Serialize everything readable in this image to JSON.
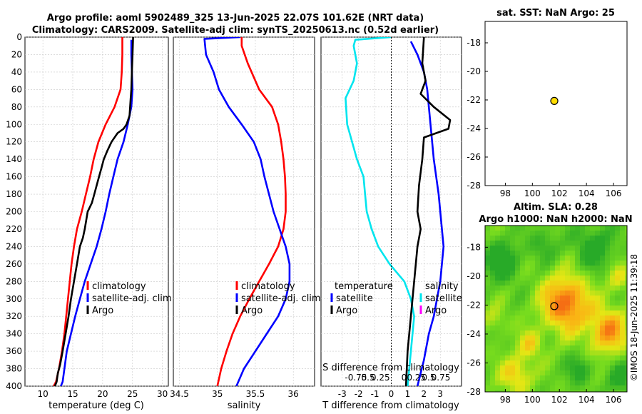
{
  "title_line1": "Argo profile: aoml 5902489_325 13-Jun-2025 22.07S 101.62E (NRT data)",
  "title_line2": "Climatology: CARS2009. Satellite-adj clim: synTS_20250613.nc (0.52d earlier)",
  "watermark": "©IMOS 18-Jun-2025 11:39:18",
  "colors": {
    "climatology": "#ff0000",
    "satellite": "#0000ff",
    "argo": "#000000",
    "s_satellite": "#00e5ee",
    "s_argo": "#ff00ff",
    "grid": "#c8c8c8"
  },
  "depth_ticks": [
    "0",
    "20",
    "40",
    "60",
    "80",
    "100",
    "120",
    "140",
    "160",
    "180",
    "200",
    "220",
    "240",
    "260",
    "280",
    "300",
    "320",
    "340",
    "360",
    "380",
    "400"
  ],
  "chart_data": [
    {
      "id": "temperature",
      "type": "line",
      "xlabel": "temperature (deg C)",
      "xlim": [
        7,
        31
      ],
      "ylim": [
        400,
        0
      ],
      "xticks": [
        "10",
        "15",
        "20",
        "25",
        "30"
      ],
      "legend": [
        "climatology",
        "satellite-adj. clim",
        "Argo"
      ],
      "series": [
        {
          "name": "climatology",
          "color": "#ff0000",
          "x": [
            23.3,
            23.3,
            23.2,
            23.0,
            22.0,
            20.5,
            19.3,
            18.5,
            17.9,
            17.2,
            16.5,
            15.7,
            15.2,
            14.8,
            14.5,
            14.2,
            13.9,
            13.6,
            13.2,
            12.7,
            12.2,
            11.8
          ],
          "y": [
            0,
            20,
            40,
            60,
            80,
            100,
            120,
            140,
            160,
            180,
            200,
            220,
            240,
            260,
            280,
            300,
            320,
            340,
            360,
            380,
            395,
            400
          ]
        },
        {
          "name": "satellite-adj. clim",
          "color": "#0000ff",
          "x": [
            24.8,
            24.8,
            24.9,
            25.0,
            24.8,
            24.2,
            23.5,
            22.5,
            21.8,
            21.1,
            20.5,
            19.8,
            19.0,
            18.0,
            17.0,
            16.2,
            15.4,
            14.7,
            14.0,
            13.6,
            13.3,
            13.0
          ],
          "y": [
            3,
            20,
            40,
            60,
            80,
            100,
            120,
            140,
            160,
            180,
            200,
            220,
            240,
            260,
            280,
            300,
            320,
            340,
            360,
            380,
            395,
            400
          ]
        },
        {
          "name": "Argo",
          "color": "#000000",
          "x": [
            25.1,
            25.0,
            24.9,
            24.8,
            24.7,
            24.6,
            24.5,
            24.0,
            23.5,
            22.5,
            21.5,
            20.8,
            20.2,
            19.8,
            19.4,
            19.0,
            18.6,
            18.2,
            17.5,
            17.0,
            16.7,
            16.2,
            15.7,
            15.2,
            14.7,
            14.3,
            13.8,
            13.3,
            12.9,
            12.5,
            12.3,
            12.0
          ],
          "y": [
            0,
            20,
            40,
            60,
            70,
            80,
            90,
            100,
            105,
            110,
            120,
            130,
            140,
            150,
            160,
            170,
            180,
            190,
            200,
            220,
            230,
            240,
            260,
            280,
            300,
            320,
            340,
            360,
            375,
            385,
            395,
            400
          ]
        }
      ]
    },
    {
      "id": "salinity",
      "type": "line",
      "xlabel": "salinity",
      "xlim": [
        34.42,
        36.28
      ],
      "ylim": [
        400,
        0
      ],
      "xticks": [
        "34.5",
        "35",
        "35.5",
        "36"
      ],
      "legend": [
        "climatology",
        "satellite-adj. clim",
        "Argo"
      ],
      "series": [
        {
          "name": "climatology",
          "color": "#ff0000",
          "x": [
            35.32,
            35.32,
            35.4,
            35.55,
            35.72,
            35.8,
            35.84,
            35.87,
            35.89,
            35.9,
            35.9,
            35.87,
            35.8,
            35.68,
            35.55,
            35.42,
            35.3,
            35.2,
            35.12,
            35.05,
            35.0
          ],
          "y": [
            0,
            10,
            30,
            60,
            80,
            100,
            120,
            140,
            160,
            180,
            200,
            220,
            240,
            260,
            280,
            300,
            320,
            340,
            360,
            380,
            400
          ]
        },
        {
          "name": "satellite-adj. clim",
          "color": "#0000ff",
          "x": [
            35.3,
            34.83,
            34.85,
            34.95,
            35.02,
            35.15,
            35.32,
            35.48,
            35.57,
            35.62,
            35.68,
            35.74,
            35.82,
            35.9,
            35.95,
            35.95,
            35.9,
            35.8,
            35.65,
            35.5,
            35.35,
            35.25
          ],
          "y": [
            0,
            2,
            20,
            40,
            60,
            80,
            100,
            120,
            140,
            160,
            180,
            200,
            220,
            240,
            260,
            280,
            300,
            320,
            340,
            360,
            380,
            400
          ]
        }
      ]
    },
    {
      "id": "difference",
      "type": "line",
      "xlabel": "T difference from climatology",
      "xlabel_top": "S difference from climatology",
      "xlim": [
        -4.3,
        4.3
      ],
      "ylim": [
        400,
        0
      ],
      "xticks": [
        "-3",
        "-2",
        "-1",
        "0",
        "1",
        "2",
        "3"
      ],
      "top_ticks": [
        "-0.75",
        "0.5",
        "0.25",
        "0",
        "0.25",
        "0.5",
        "0.75"
      ],
      "legend_temperature_title": "temperature",
      "legend_salinity_title": "salinity",
      "legend_temperature": [
        "satellite",
        "Argo"
      ],
      "legend_salinity": [
        "satellite",
        "Argo"
      ],
      "series": [
        {
          "name": "S satellite",
          "color": "#00e5ee",
          "x": [
            0.0,
            -2.2,
            -2.3,
            -2.1,
            -2.3,
            -2.8,
            -2.7,
            -2.1,
            -1.7,
            -1.6,
            -1.5,
            -1.2,
            -0.8,
            -0.1,
            0.8,
            1.2,
            1.4,
            1.3,
            1.2,
            1.1,
            1.0
          ],
          "y": [
            0,
            3,
            10,
            30,
            50,
            70,
            100,
            140,
            160,
            180,
            200,
            220,
            240,
            260,
            280,
            300,
            320,
            340,
            360,
            380,
            400
          ]
        },
        {
          "name": "T satellite",
          "color": "#0000ff",
          "x": [
            1.2,
            1.6,
            2.0,
            2.2,
            2.3,
            2.4,
            2.6,
            2.9,
            3.0,
            3.1,
            3.2,
            3.1,
            3.0,
            2.8,
            2.6,
            2.3,
            2.0,
            1.6
          ],
          "y": [
            5,
            20,
            40,
            60,
            80,
            100,
            140,
            180,
            200,
            220,
            240,
            260,
            280,
            300,
            320,
            340,
            370,
            400
          ]
        },
        {
          "name": "T Argo",
          "color": "#000000",
          "x": [
            2.0,
            1.9,
            2.1,
            1.8,
            2.6,
            3.6,
            3.5,
            2.0,
            1.9,
            1.7,
            1.6,
            1.8,
            1.6,
            1.5,
            1.4,
            1.3,
            1.2,
            1.1,
            1.0,
            0.9
          ],
          "y": [
            0,
            30,
            50,
            65,
            80,
            95,
            105,
            115,
            140,
            170,
            200,
            220,
            240,
            260,
            280,
            300,
            320,
            340,
            360,
            400
          ]
        }
      ]
    },
    {
      "id": "sst_map",
      "type": "scatter",
      "title": "sat. SST: NaN Argo: 25",
      "xlim": [
        96.5,
        107
      ],
      "ylim": [
        -28,
        -16.5
      ],
      "xticks": [
        "98",
        "100",
        "102",
        "104",
        "106"
      ],
      "yticks": [
        "-18",
        "-20",
        "-22",
        "-24",
        "-26",
        "-28"
      ],
      "points": [
        {
          "x": 101.62,
          "y": -22.07,
          "color": "#ffdd00"
        }
      ]
    },
    {
      "id": "sla_map",
      "type": "heatmap",
      "title_line1": "Altim. SLA: 0.28",
      "title_line2": "Argo h1000: NaN h2000: NaN",
      "xlim": [
        96.5,
        107
      ],
      "ylim": [
        -28,
        -16.5
      ],
      "xticks": [
        "98",
        "100",
        "102",
        "104",
        "106"
      ],
      "yticks": [
        "-18",
        "-20",
        "-22",
        "-24",
        "-26",
        "-28"
      ],
      "points": [
        {
          "x": 101.62,
          "y": -22.07
        }
      ]
    }
  ]
}
